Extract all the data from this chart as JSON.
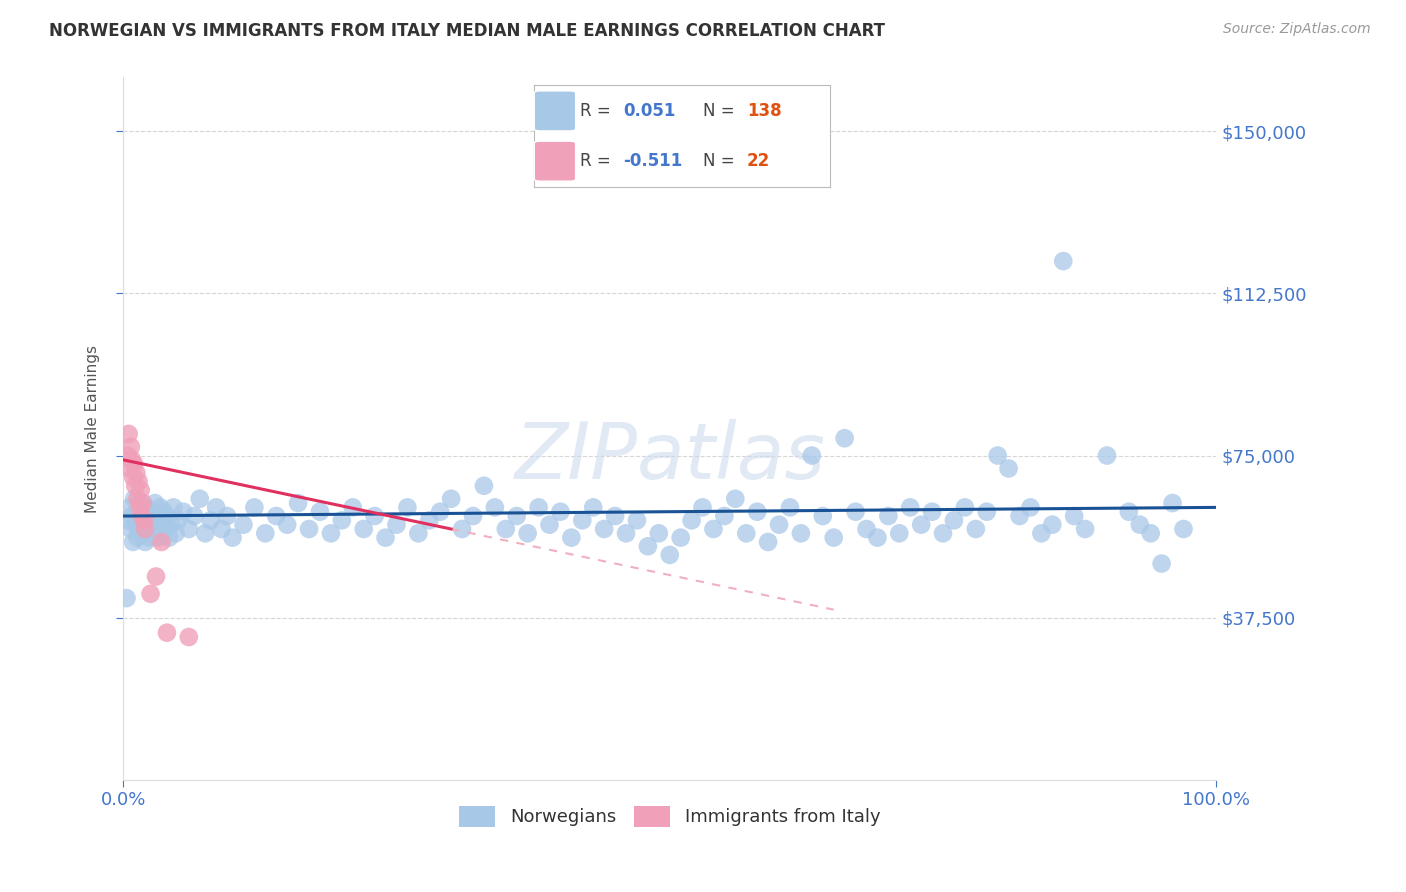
{
  "title": "NORWEGIAN VS IMMIGRANTS FROM ITALY MEDIAN MALE EARNINGS CORRELATION CHART",
  "source": "Source: ZipAtlas.com",
  "ylabel": "Median Male Earnings",
  "ytick_labels": [
    "$37,500",
    "$75,000",
    "$112,500",
    "$150,000"
  ],
  "ytick_values": [
    37500,
    75000,
    112500,
    150000
  ],
  "ylim": [
    0,
    162500
  ],
  "xlim": [
    0.0,
    1.0
  ],
  "xtick_labels": [
    "0.0%",
    "100.0%"
  ],
  "xtick_values": [
    0.0,
    1.0
  ],
  "legend_nor_R": "0.051",
  "legend_nor_N": "138",
  "legend_ita_R": "-0.511",
  "legend_ita_N": "22",
  "nor_color": "#a8c8e8",
  "ita_color": "#f0a0b8",
  "nor_line_color": "#1a5296",
  "ita_line_solid_color": "#e03060",
  "ita_line_dash_color": "#f0b0c0",
  "bg_color": "#ffffff",
  "grid_color": "#cccccc",
  "axis_num_color": "#4477cc",
  "title_color": "#333333",
  "source_color": "#999999",
  "watermark_color": "#c8d8ec",
  "nor_line_y0": 61000,
  "nor_line_y1": 63000,
  "ita_line_y0": 74000,
  "ita_line_y_at_03": 58000,
  "ita_line_x_solid_end": 0.3,
  "ita_line_x_dash_end": 0.65,
  "norwegian_points": [
    [
      0.004,
      60000
    ],
    [
      0.006,
      63000
    ],
    [
      0.007,
      58000
    ],
    [
      0.008,
      61000
    ],
    [
      0.009,
      55000
    ],
    [
      0.01,
      65000
    ],
    [
      0.011,
      59000
    ],
    [
      0.012,
      62000
    ],
    [
      0.013,
      56000
    ],
    [
      0.014,
      60000
    ],
    [
      0.015,
      58000
    ],
    [
      0.016,
      64000
    ],
    [
      0.017,
      57000
    ],
    [
      0.018,
      62000
    ],
    [
      0.019,
      60000
    ],
    [
      0.02,
      55000
    ],
    [
      0.021,
      63000
    ],
    [
      0.022,
      58000
    ],
    [
      0.023,
      61000
    ],
    [
      0.024,
      56000
    ],
    [
      0.025,
      59000
    ],
    [
      0.026,
      62000
    ],
    [
      0.027,
      57000
    ],
    [
      0.028,
      60000
    ],
    [
      0.029,
      64000
    ],
    [
      0.03,
      58000
    ],
    [
      0.031,
      61000
    ],
    [
      0.032,
      56000
    ],
    [
      0.033,
      59000
    ],
    [
      0.034,
      63000
    ],
    [
      0.035,
      57000
    ],
    [
      0.036,
      60000
    ],
    [
      0.037,
      62000
    ],
    [
      0.038,
      58000
    ],
    [
      0.04,
      61000
    ],
    [
      0.042,
      56000
    ],
    [
      0.044,
      59000
    ],
    [
      0.046,
      63000
    ],
    [
      0.048,
      57000
    ],
    [
      0.05,
      60000
    ],
    [
      0.055,
      62000
    ],
    [
      0.06,
      58000
    ],
    [
      0.065,
      61000
    ],
    [
      0.07,
      65000
    ],
    [
      0.075,
      57000
    ],
    [
      0.08,
      60000
    ],
    [
      0.085,
      63000
    ],
    [
      0.09,
      58000
    ],
    [
      0.095,
      61000
    ],
    [
      0.1,
      56000
    ],
    [
      0.11,
      59000
    ],
    [
      0.12,
      63000
    ],
    [
      0.13,
      57000
    ],
    [
      0.14,
      61000
    ],
    [
      0.15,
      59000
    ],
    [
      0.16,
      64000
    ],
    [
      0.17,
      58000
    ],
    [
      0.18,
      62000
    ],
    [
      0.19,
      57000
    ],
    [
      0.2,
      60000
    ],
    [
      0.21,
      63000
    ],
    [
      0.22,
      58000
    ],
    [
      0.23,
      61000
    ],
    [
      0.24,
      56000
    ],
    [
      0.25,
      59000
    ],
    [
      0.26,
      63000
    ],
    [
      0.27,
      57000
    ],
    [
      0.28,
      60000
    ],
    [
      0.29,
      62000
    ],
    [
      0.3,
      65000
    ],
    [
      0.31,
      58000
    ],
    [
      0.32,
      61000
    ],
    [
      0.33,
      68000
    ],
    [
      0.34,
      63000
    ],
    [
      0.35,
      58000
    ],
    [
      0.36,
      61000
    ],
    [
      0.37,
      57000
    ],
    [
      0.38,
      63000
    ],
    [
      0.39,
      59000
    ],
    [
      0.4,
      62000
    ],
    [
      0.41,
      56000
    ],
    [
      0.42,
      60000
    ],
    [
      0.43,
      63000
    ],
    [
      0.44,
      58000
    ],
    [
      0.45,
      61000
    ],
    [
      0.46,
      57000
    ],
    [
      0.47,
      60000
    ],
    [
      0.48,
      54000
    ],
    [
      0.49,
      57000
    ],
    [
      0.5,
      52000
    ],
    [
      0.51,
      56000
    ],
    [
      0.52,
      60000
    ],
    [
      0.53,
      63000
    ],
    [
      0.54,
      58000
    ],
    [
      0.55,
      61000
    ],
    [
      0.56,
      65000
    ],
    [
      0.57,
      57000
    ],
    [
      0.58,
      62000
    ],
    [
      0.59,
      55000
    ],
    [
      0.6,
      59000
    ],
    [
      0.61,
      63000
    ],
    [
      0.62,
      57000
    ],
    [
      0.63,
      75000
    ],
    [
      0.64,
      61000
    ],
    [
      0.65,
      56000
    ],
    [
      0.66,
      79000
    ],
    [
      0.67,
      62000
    ],
    [
      0.68,
      58000
    ],
    [
      0.69,
      56000
    ],
    [
      0.7,
      61000
    ],
    [
      0.71,
      57000
    ],
    [
      0.72,
      63000
    ],
    [
      0.73,
      59000
    ],
    [
      0.74,
      62000
    ],
    [
      0.75,
      57000
    ],
    [
      0.76,
      60000
    ],
    [
      0.77,
      63000
    ],
    [
      0.78,
      58000
    ],
    [
      0.79,
      62000
    ],
    [
      0.8,
      75000
    ],
    [
      0.81,
      72000
    ],
    [
      0.82,
      61000
    ],
    [
      0.83,
      63000
    ],
    [
      0.84,
      57000
    ],
    [
      0.85,
      59000
    ],
    [
      0.86,
      120000
    ],
    [
      0.87,
      61000
    ],
    [
      0.88,
      58000
    ],
    [
      0.9,
      75000
    ],
    [
      0.92,
      62000
    ],
    [
      0.93,
      59000
    ],
    [
      0.94,
      57000
    ],
    [
      0.95,
      50000
    ],
    [
      0.96,
      64000
    ],
    [
      0.97,
      58000
    ],
    [
      0.003,
      42000
    ]
  ],
  "italian_points": [
    [
      0.004,
      75000
    ],
    [
      0.005,
      80000
    ],
    [
      0.006,
      72000
    ],
    [
      0.007,
      77000
    ],
    [
      0.008,
      74000
    ],
    [
      0.009,
      70000
    ],
    [
      0.01,
      73000
    ],
    [
      0.011,
      68000
    ],
    [
      0.012,
      71000
    ],
    [
      0.013,
      65000
    ],
    [
      0.014,
      69000
    ],
    [
      0.015,
      63000
    ],
    [
      0.016,
      67000
    ],
    [
      0.017,
      61000
    ],
    [
      0.018,
      64000
    ],
    [
      0.019,
      60000
    ],
    [
      0.02,
      58000
    ],
    [
      0.025,
      43000
    ],
    [
      0.03,
      47000
    ],
    [
      0.035,
      55000
    ],
    [
      0.04,
      34000
    ],
    [
      0.06,
      33000
    ]
  ]
}
